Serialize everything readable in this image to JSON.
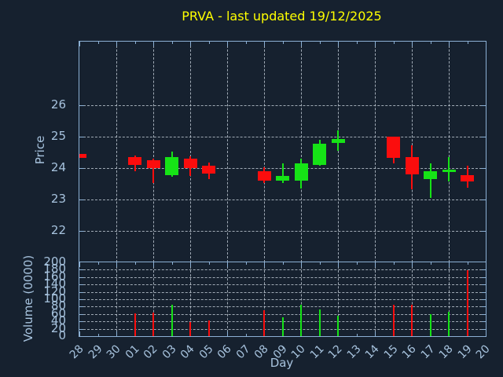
{
  "chart_data": {
    "type": "candlestick",
    "title": "PRVA - last updated 19/12/2025",
    "xlabel": "Day",
    "price_axis": {
      "label": "Price",
      "ticks": [
        26,
        25,
        24,
        23,
        22
      ],
      "range": [
        21.0,
        28.0
      ],
      "grid": true
    },
    "volume_axis": {
      "label": "Volume (0000)",
      "ticks": [
        200,
        180,
        160,
        140,
        120,
        100,
        80,
        60,
        40,
        20,
        0
      ],
      "range": [
        0,
        200
      ],
      "grid": true
    },
    "x_axis": {
      "categories": [
        "28",
        "29",
        "30",
        "01",
        "02",
        "03",
        "04",
        "05",
        "06",
        "07",
        "08",
        "09",
        "10",
        "11",
        "12",
        "13",
        "14",
        "15",
        "16",
        "17",
        "18",
        "19",
        "20"
      ],
      "gridline_every": 2,
      "labels_rotation_deg": -45
    },
    "candles": [
      {
        "day": "28",
        "open": 24.45,
        "high": 24.45,
        "low": 24.34,
        "close": 24.34,
        "dir": "down",
        "clipped_left": true
      },
      {
        "day": "01",
        "open": 24.35,
        "high": 24.41,
        "low": 23.9,
        "close": 24.1,
        "dir": "down"
      },
      {
        "day": "02",
        "open": 24.25,
        "high": 24.32,
        "low": 23.54,
        "close": 24.0,
        "dir": "down"
      },
      {
        "day": "03",
        "open": 23.79,
        "high": 24.53,
        "low": 23.72,
        "close": 24.36,
        "dir": "up"
      },
      {
        "day": "04",
        "open": 24.31,
        "high": 24.38,
        "low": 23.76,
        "close": 24.0,
        "dir": "down"
      },
      {
        "day": "05",
        "open": 24.09,
        "high": 24.18,
        "low": 23.66,
        "close": 23.84,
        "dir": "down"
      },
      {
        "day": "08",
        "open": 23.91,
        "high": 24.03,
        "low": 23.52,
        "close": 23.6,
        "dir": "down"
      },
      {
        "day": "09",
        "open": 23.6,
        "high": 24.15,
        "low": 23.52,
        "close": 23.77,
        "dir": "up"
      },
      {
        "day": "10",
        "open": 23.6,
        "high": 24.32,
        "low": 23.36,
        "close": 24.17,
        "dir": "up"
      },
      {
        "day": "11",
        "open": 24.1,
        "high": 24.92,
        "low": 24.08,
        "close": 24.79,
        "dir": "up"
      },
      {
        "day": "12",
        "open": 24.8,
        "high": 25.22,
        "low": 24.56,
        "close": 24.93,
        "dir": "up"
      },
      {
        "day": "15",
        "open": 25.0,
        "high": 25.02,
        "low": 24.15,
        "close": 24.33,
        "dir": "down"
      },
      {
        "day": "16",
        "open": 24.36,
        "high": 24.74,
        "low": 23.34,
        "close": 23.8,
        "dir": "down"
      },
      {
        "day": "17",
        "open": 23.66,
        "high": 24.16,
        "low": 23.05,
        "close": 23.91,
        "dir": "up"
      },
      {
        "day": "18",
        "open": 23.88,
        "high": 24.36,
        "low": 23.58,
        "close": 23.96,
        "dir": "up"
      },
      {
        "day": "19",
        "open": 23.79,
        "high": 24.08,
        "low": 23.38,
        "close": 23.58,
        "dir": "down"
      }
    ],
    "volumes": [
      {
        "day": "01",
        "value": 61,
        "dir": "down"
      },
      {
        "day": "02",
        "value": 64,
        "dir": "down"
      },
      {
        "day": "03",
        "value": 86,
        "dir": "up"
      },
      {
        "day": "04",
        "value": 38,
        "dir": "down"
      },
      {
        "day": "05",
        "value": 43,
        "dir": "down"
      },
      {
        "day": "08",
        "value": 70,
        "dir": "down"
      },
      {
        "day": "09",
        "value": 52,
        "dir": "up"
      },
      {
        "day": "10",
        "value": 86,
        "dir": "up"
      },
      {
        "day": "11",
        "value": 72,
        "dir": "up"
      },
      {
        "day": "12",
        "value": 55,
        "dir": "up"
      },
      {
        "day": "15",
        "value": 86,
        "dir": "down"
      },
      {
        "day": "16",
        "value": 85,
        "dir": "down"
      },
      {
        "day": "17",
        "value": 60,
        "dir": "up"
      },
      {
        "day": "18",
        "value": 65,
        "dir": "up"
      },
      {
        "day": "19",
        "value": 179,
        "dir": "down"
      }
    ],
    "colors": {
      "up_candle": "#16e316",
      "down_candle": "#fb0d0d",
      "background": "#16212f",
      "axis": "#8cb0d4",
      "tick_labels": "#a7c3de",
      "grid": "#c3cdd7",
      "title": "#ffff00"
    }
  }
}
